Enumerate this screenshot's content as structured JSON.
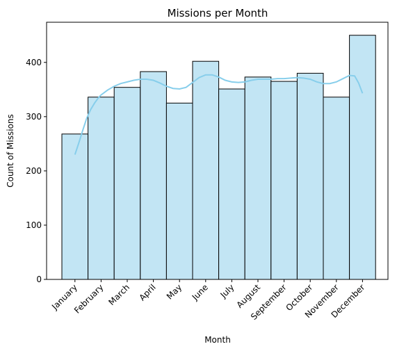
{
  "chart_data": {
    "type": "bar",
    "title": "Missions per Month",
    "xlabel": "Month",
    "ylabel": "Count of Missions",
    "categories": [
      "January",
      "February",
      "March",
      "April",
      "May",
      "June",
      "July",
      "August",
      "September",
      "October",
      "November",
      "December"
    ],
    "values": [
      268,
      336,
      354,
      383,
      325,
      402,
      351,
      373,
      365,
      380,
      336,
      450
    ],
    "ylim": [
      0,
      474
    ],
    "yticks": [
      0,
      100,
      200,
      300,
      400
    ],
    "grid": false,
    "bar_fill": "#c2e5f4",
    "bar_edge": "#000000",
    "kde_color": "#87ceeb",
    "kde_curve": [
      [
        0,
        230
      ],
      [
        0.15,
        252
      ],
      [
        0.3,
        275
      ],
      [
        0.45,
        297
      ],
      [
        0.6,
        313
      ],
      [
        0.75,
        325
      ],
      [
        0.9,
        335
      ],
      [
        1.0,
        340
      ],
      [
        1.25,
        349
      ],
      [
        1.5,
        356
      ],
      [
        1.75,
        361
      ],
      [
        2.0,
        364
      ],
      [
        2.25,
        367
      ],
      [
        2.5,
        369
      ],
      [
        2.75,
        369
      ],
      [
        3.0,
        367
      ],
      [
        3.25,
        362
      ],
      [
        3.5,
        356
      ],
      [
        3.75,
        352
      ],
      [
        4.0,
        351
      ],
      [
        4.25,
        354
      ],
      [
        4.5,
        363
      ],
      [
        4.75,
        372
      ],
      [
        5.0,
        377
      ],
      [
        5.25,
        377
      ],
      [
        5.5,
        373
      ],
      [
        5.75,
        367
      ],
      [
        6.0,
        364
      ],
      [
        6.25,
        363
      ],
      [
        6.5,
        364
      ],
      [
        6.75,
        367
      ],
      [
        7.0,
        369
      ],
      [
        7.25,
        369
      ],
      [
        7.5,
        369
      ],
      [
        7.75,
        370
      ],
      [
        8.0,
        370
      ],
      [
        8.25,
        371
      ],
      [
        8.5,
        372
      ],
      [
        8.75,
        371
      ],
      [
        9.0,
        369
      ],
      [
        9.25,
        364
      ],
      [
        9.5,
        361
      ],
      [
        9.75,
        361
      ],
      [
        10.0,
        364
      ],
      [
        10.25,
        370
      ],
      [
        10.5,
        376
      ],
      [
        10.7,
        375
      ],
      [
        10.85,
        362
      ],
      [
        11.0,
        343
      ]
    ]
  }
}
